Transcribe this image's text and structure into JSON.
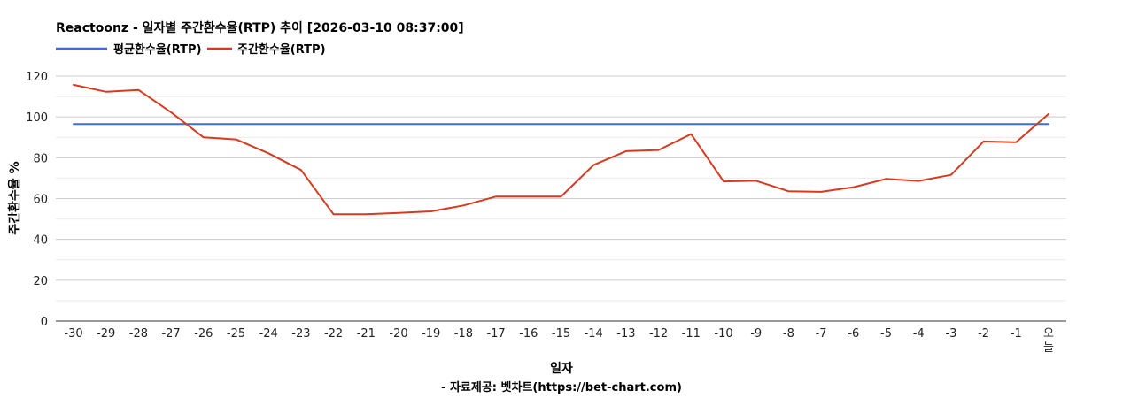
{
  "chart_data": {
    "type": "line",
    "title": "Reactoonz - 일자별 주간환수율(RTP) 추이 [2026-03-10 08:37:00]",
    "xlabel": "일자",
    "ylabel": "주간환수율 %",
    "source": "- 자료제공: 벳차트(https://bet-chart.com)",
    "categories": [
      "-30",
      "-29",
      "-28",
      "-27",
      "-26",
      "-25",
      "-24",
      "-23",
      "-22",
      "-21",
      "-20",
      "-19",
      "-18",
      "-17",
      "-16",
      "-15",
      "-14",
      "-13",
      "-12",
      "-11",
      "-10",
      "-9",
      "-8",
      "-7",
      "-6",
      "-5",
      "-4",
      "-3",
      "-2",
      "-1",
      "오늘"
    ],
    "ylim": [
      0,
      120
    ],
    "yticks": [
      0,
      20,
      40,
      60,
      80,
      100,
      120
    ],
    "grid": true,
    "legend_position": "top-left",
    "series": [
      {
        "name": "평균환수율(RTP)",
        "color": "#3b6fd4",
        "values": [
          96.5,
          96.5,
          96.5,
          96.5,
          96.5,
          96.5,
          96.5,
          96.5,
          96.5,
          96.5,
          96.5,
          96.5,
          96.5,
          96.5,
          96.5,
          96.5,
          96.5,
          96.5,
          96.5,
          96.5,
          96.5,
          96.5,
          96.5,
          96.5,
          96.5,
          96.5,
          96.5,
          96.5,
          96.5,
          96.5,
          96.5
        ]
      },
      {
        "name": "주간환수율(RTP)",
        "color": "#d63b1f",
        "values": [
          115.7,
          112.3,
          113.2,
          102.3,
          90.0,
          89.0,
          82.2,
          74.0,
          52.3,
          52.3,
          53.0,
          53.7,
          56.6,
          61.0,
          61.0,
          61.0,
          76.4,
          83.2,
          83.8,
          91.6,
          68.4,
          68.7,
          63.6,
          63.3,
          65.6,
          69.6,
          68.6,
          71.6,
          88.0,
          87.6,
          101.4
        ]
      }
    ]
  }
}
